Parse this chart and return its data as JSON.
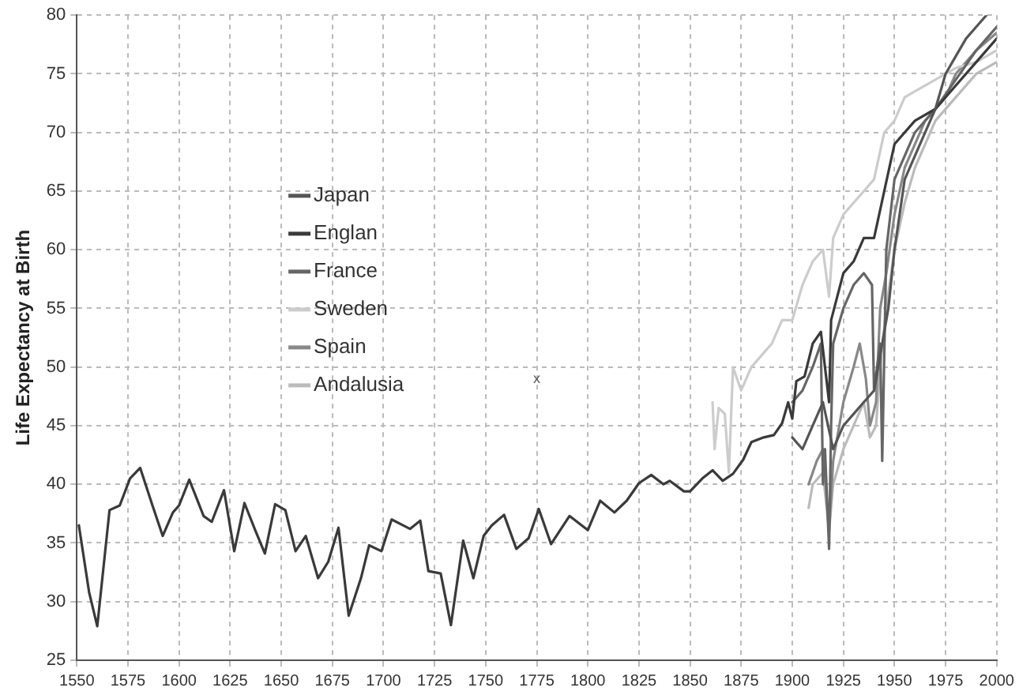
{
  "chart_data": {
    "type": "line",
    "ylabel": "Life Expectancy at Birth",
    "xlim": [
      1550,
      2000
    ],
    "xticks": [
      1550,
      1575,
      1600,
      1625,
      1650,
      1675,
      1700,
      1725,
      1750,
      1775,
      1800,
      1825,
      1850,
      1875,
      1900,
      1925,
      1950,
      1975,
      2000
    ],
    "ylim": [
      25,
      80
    ],
    "yticks": [
      25,
      30,
      35,
      40,
      45,
      50,
      55,
      60,
      65,
      70,
      75,
      80
    ],
    "grid": true,
    "legend": "top left",
    "marker": "none",
    "line_style": "solid",
    "annotations": [
      "x"
    ],
    "series": [
      {
        "name": "Japan",
        "color": "#555555",
        "x": [
          1900,
          1905,
          1910,
          1915,
          1920,
          1925,
          1930,
          1935,
          1940,
          1947,
          1950,
          1955,
          1960,
          1965,
          1970,
          1975,
          1980,
          1985,
          1990,
          1995
        ],
        "values": [
          44,
          43,
          45,
          47,
          43,
          45,
          46,
          47,
          48,
          55,
          60,
          66,
          68,
          70,
          72,
          75,
          76.5,
          78,
          79,
          80
        ]
      },
      {
        "name": "Englan",
        "color": "#3a3a3a",
        "x": [
          1551,
          1556,
          1560,
          1566,
          1571,
          1576,
          1581,
          1587,
          1592,
          1597,
          1600,
          1605,
          1612,
          1616,
          1622,
          1627,
          1632,
          1637,
          1642,
          1647,
          1652,
          1657,
          1662,
          1668,
          1673,
          1678,
          1683,
          1689,
          1693,
          1699,
          1704,
          1713,
          1718,
          1722,
          1728,
          1733,
          1739,
          1744,
          1749,
          1753,
          1759,
          1765,
          1771,
          1776,
          1782,
          1791,
          1800,
          1806,
          1813,
          1819,
          1825,
          1831,
          1837,
          1840,
          1847,
          1850,
          1856,
          1861,
          1866,
          1871,
          1876,
          1880,
          1886,
          1891,
          1895,
          1898,
          1900,
          1902,
          1906,
          1910,
          1914,
          1916,
          1918,
          1919,
          1925,
          1930,
          1935,
          1940,
          1945,
          1950,
          1960,
          1970,
          1980,
          1990,
          2000
        ],
        "values": [
          36.5,
          30.8,
          27.9,
          37.8,
          38.2,
          40.5,
          41.4,
          38.2,
          35.6,
          37.6,
          38.2,
          40.4,
          37.3,
          36.8,
          39.5,
          34.3,
          38.4,
          36.2,
          34.1,
          38.3,
          37.8,
          34.3,
          35.6,
          32,
          33.4,
          36.3,
          28.8,
          32,
          34.8,
          34.3,
          37,
          36.2,
          36.9,
          32.6,
          32.4,
          28,
          35.2,
          32,
          35.6,
          36.5,
          37.4,
          34.5,
          35.4,
          37.9,
          34.9,
          37.3,
          36.1,
          38.6,
          37.6,
          38.6,
          40.1,
          40.8,
          40,
          40.3,
          39.4,
          39.4,
          40.5,
          41.2,
          40.3,
          40.9,
          42.1,
          43.6,
          44,
          44.2,
          45.2,
          47,
          45.6,
          48.8,
          49.2,
          52,
          53,
          50,
          47,
          54,
          58,
          59,
          61,
          61,
          65,
          69,
          71,
          72,
          74,
          76,
          78
        ]
      },
      {
        "name": "France",
        "color": "#666666",
        "x": [
          1900,
          1905,
          1910,
          1914,
          1915,
          1916,
          1918,
          1919,
          1920,
          1925,
          1930,
          1935,
          1939,
          1940,
          1943,
          1944,
          1946,
          1950,
          1960,
          1970,
          1980,
          1990,
          2000
        ],
        "values": [
          47,
          48,
          50,
          52,
          40,
          43,
          34.5,
          45,
          52,
          55,
          57,
          58,
          57,
          48,
          52,
          42,
          60,
          66,
          70,
          72,
          74.5,
          77,
          79
        ]
      },
      {
        "name": "Sweden",
        "color": "#cccccc",
        "x": [
          1861,
          1862,
          1864,
          1867,
          1869,
          1871,
          1875,
          1880,
          1885,
          1890,
          1895,
          1900,
          1905,
          1910,
          1915,
          1918,
          1920,
          1925,
          1930,
          1935,
          1940,
          1945,
          1950,
          1955,
          1960,
          1970,
          1980,
          1990,
          2000
        ],
        "values": [
          47,
          43,
          46.5,
          46,
          41,
          50,
          48,
          50,
          51,
          52,
          54,
          54,
          57,
          59,
          60,
          56,
          61,
          63,
          64,
          65,
          66,
          70,
          71,
          73,
          73.5,
          74.5,
          75.5,
          76,
          77
        ]
      },
      {
        "name": "Spain",
        "color": "#888888",
        "x": [
          1908,
          1910,
          1912,
          1915,
          1918,
          1920,
          1925,
          1930,
          1933,
          1936,
          1938,
          1941,
          1943,
          1946,
          1950,
          1955,
          1960,
          1965,
          1970,
          1975,
          1980,
          1990,
          2000
        ],
        "values": [
          40,
          41,
          42,
          43,
          36,
          42,
          47,
          50,
          52,
          49,
          45,
          47,
          55,
          58,
          63,
          67,
          69,
          71,
          72,
          73,
          75,
          77,
          78.5
        ]
      },
      {
        "name": "Andalusia",
        "color": "#bbbbbb",
        "x": [
          1908,
          1910,
          1915,
          1918,
          1920,
          1925,
          1930,
          1935,
          1938,
          1941,
          1943,
          1946,
          1950,
          1955,
          1960,
          1965,
          1970,
          1980,
          1990,
          2000
        ],
        "values": [
          38,
          40,
          41,
          36,
          40,
          43,
          45,
          47,
          44,
          45,
          50,
          55,
          60,
          64,
          67,
          69,
          71,
          73,
          75,
          76
        ]
      }
    ]
  }
}
